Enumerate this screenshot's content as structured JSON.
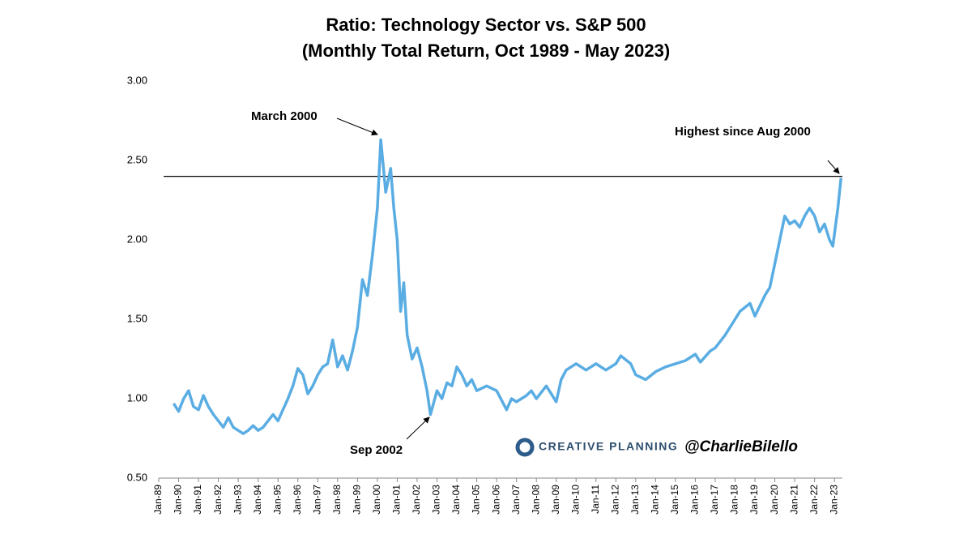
{
  "chart_data": {
    "type": "line",
    "title": "Ratio: Technology Sector vs. S&P 500",
    "subtitle": "(Monthly Total Return, Oct 1989 - May 2023)",
    "annotations": [
      "March 2000",
      "Sep 2002",
      "Highest since Aug 2000"
    ],
    "watermark": [
      "CREATIVE PLANNING",
      "@CharlieBilello"
    ],
    "reference_line": 2.4,
    "x": [
      1989.75,
      1990.0,
      1990.25,
      1990.5,
      1990.75,
      1991.0,
      1991.25,
      1991.5,
      1991.75,
      1992.0,
      1992.25,
      1992.5,
      1992.75,
      1993.0,
      1993.25,
      1993.5,
      1993.75,
      1994.0,
      1994.25,
      1994.5,
      1994.75,
      1995.0,
      1995.25,
      1995.5,
      1995.75,
      1996.0,
      1996.25,
      1996.5,
      1996.75,
      1997.0,
      1997.25,
      1997.5,
      1997.75,
      1998.0,
      1998.25,
      1998.5,
      1998.75,
      1999.0,
      1999.25,
      1999.5,
      1999.75,
      2000.0,
      2000.17,
      2000.42,
      2000.67,
      2000.83,
      2001.0,
      2001.17,
      2001.33,
      2001.5,
      2001.75,
      2002.0,
      2002.25,
      2002.5,
      2002.67,
      2003.0,
      2003.25,
      2003.5,
      2003.75,
      2004.0,
      2004.25,
      2004.5,
      2004.75,
      2005.0,
      2005.5,
      2006.0,
      2006.5,
      2006.75,
      2007.0,
      2007.5,
      2007.75,
      2008.0,
      2008.5,
      2008.75,
      2009.0,
      2009.25,
      2009.5,
      2009.75,
      2010.0,
      2010.5,
      2011.0,
      2011.5,
      2012.0,
      2012.25,
      2012.75,
      2013.0,
      2013.5,
      2014.0,
      2014.5,
      2015.0,
      2015.5,
      2016.0,
      2016.25,
      2016.75,
      2017.0,
      2017.5,
      2018.0,
      2018.25,
      2018.75,
      2019.0,
      2019.5,
      2019.75,
      2020.0,
      2020.25,
      2020.5,
      2020.75,
      2021.0,
      2021.25,
      2021.5,
      2021.75,
      2022.0,
      2022.25,
      2022.5,
      2022.75,
      2022.92,
      2023.17,
      2023.33
    ],
    "series": [
      {
        "name": "Ratio",
        "color": "#5aade3",
        "values": [
          0.97,
          0.92,
          1.0,
          1.05,
          0.95,
          0.93,
          1.02,
          0.95,
          0.9,
          0.86,
          0.82,
          0.88,
          0.82,
          0.8,
          0.78,
          0.8,
          0.83,
          0.8,
          0.82,
          0.86,
          0.9,
          0.86,
          0.93,
          1.0,
          1.08,
          1.19,
          1.15,
          1.03,
          1.08,
          1.15,
          1.2,
          1.22,
          1.37,
          1.2,
          1.27,
          1.18,
          1.3,
          1.45,
          1.75,
          1.65,
          1.9,
          2.2,
          2.63,
          2.3,
          2.45,
          2.2,
          2.0,
          1.55,
          1.73,
          1.4,
          1.25,
          1.32,
          1.2,
          1.05,
          0.9,
          1.05,
          1.0,
          1.1,
          1.08,
          1.2,
          1.15,
          1.08,
          1.12,
          1.05,
          1.08,
          1.05,
          0.93,
          1.0,
          0.98,
          1.02,
          1.05,
          1.0,
          1.08,
          1.03,
          0.98,
          1.12,
          1.18,
          1.2,
          1.22,
          1.18,
          1.22,
          1.18,
          1.22,
          1.27,
          1.22,
          1.15,
          1.12,
          1.17,
          1.2,
          1.22,
          1.24,
          1.28,
          1.23,
          1.3,
          1.32,
          1.4,
          1.5,
          1.55,
          1.6,
          1.52,
          1.65,
          1.7,
          1.85,
          2.0,
          2.15,
          2.1,
          2.12,
          2.08,
          2.15,
          2.2,
          2.15,
          2.05,
          2.1,
          2.0,
          1.96,
          2.2,
          2.39
        ]
      }
    ],
    "xlim": [
      1989,
      2023.4
    ],
    "xticks": [
      {
        "value": 1989,
        "label": "Jan-89"
      },
      {
        "value": 1990,
        "label": "Jan-90"
      },
      {
        "value": 1991,
        "label": "Jan-91"
      },
      {
        "value": 1992,
        "label": "Jan-92"
      },
      {
        "value": 1993,
        "label": "Jan-93"
      },
      {
        "value": 1994,
        "label": "Jan-94"
      },
      {
        "value": 1995,
        "label": "Jan-95"
      },
      {
        "value": 1996,
        "label": "Jan-96"
      },
      {
        "value": 1997,
        "label": "Jan-97"
      },
      {
        "value": 1998,
        "label": "Jan-98"
      },
      {
        "value": 1999,
        "label": "Jan-99"
      },
      {
        "value": 2000,
        "label": "Jan-00"
      },
      {
        "value": 2001,
        "label": "Jan-01"
      },
      {
        "value": 2002,
        "label": "Jan-02"
      },
      {
        "value": 2003,
        "label": "Jan-03"
      },
      {
        "value": 2004,
        "label": "Jan-04"
      },
      {
        "value": 2005,
        "label": "Jan-05"
      },
      {
        "value": 2006,
        "label": "Jan-06"
      },
      {
        "value": 2007,
        "label": "Jan-07"
      },
      {
        "value": 2008,
        "label": "Jan-08"
      },
      {
        "value": 2009,
        "label": "Jan-09"
      },
      {
        "value": 2010,
        "label": "Jan-10"
      },
      {
        "value": 2011,
        "label": "Jan-11"
      },
      {
        "value": 2012,
        "label": "Jan-12"
      },
      {
        "value": 2013,
        "label": "Jan-13"
      },
      {
        "value": 2014,
        "label": "Jan-14"
      },
      {
        "value": 2015,
        "label": "Jan-15"
      },
      {
        "value": 2016,
        "label": "Jan-16"
      },
      {
        "value": 2017,
        "label": "Jan-17"
      },
      {
        "value": 2018,
        "label": "Jan-18"
      },
      {
        "value": 2019,
        "label": "Jan-19"
      },
      {
        "value": 2020,
        "label": "Jan-20"
      },
      {
        "value": 2021,
        "label": "Jan-21"
      },
      {
        "value": 2022,
        "label": "Jan-22"
      },
      {
        "value": 2023,
        "label": "Jan-23"
      }
    ],
    "ylim": [
      0.5,
      3.0
    ],
    "yticks": [
      {
        "value": 0.5,
        "label": "0.50"
      },
      {
        "value": 1.0,
        "label": "1.00"
      },
      {
        "value": 1.5,
        "label": "1.50"
      },
      {
        "value": 2.0,
        "label": "2.00"
      },
      {
        "value": 2.5,
        "label": "2.50"
      },
      {
        "value": 3.0,
        "label": "3.00"
      }
    ],
    "grid": false
  }
}
